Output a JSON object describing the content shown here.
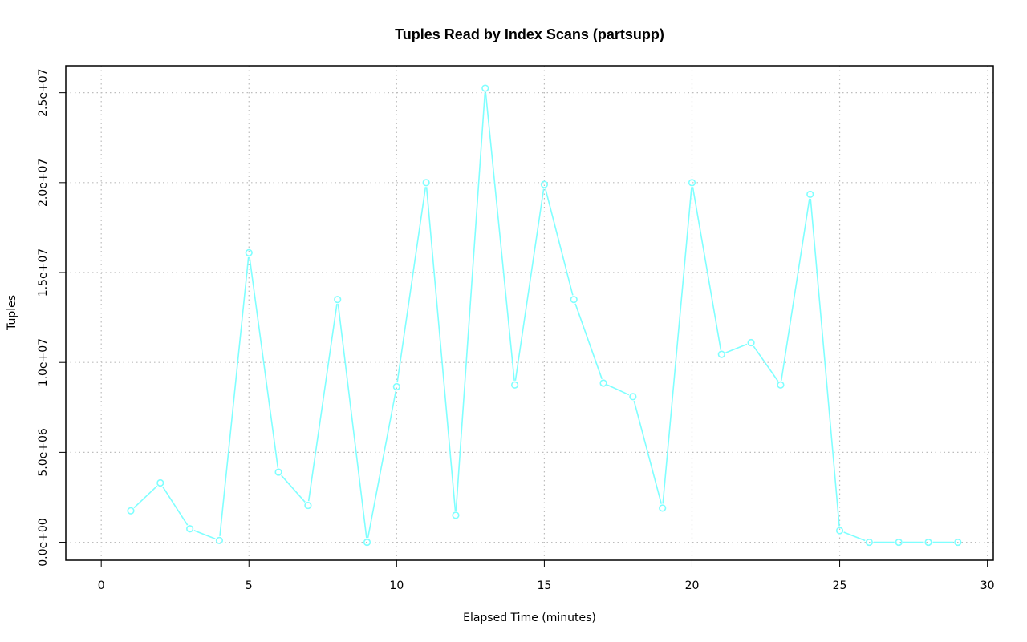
{
  "chart_data": {
    "type": "line",
    "title": "Tuples Read by Index Scans (partsupp)",
    "xlabel": "Elapsed Time (minutes)",
    "ylabel": "Tuples",
    "xlim": [
      -1.2,
      30.2
    ],
    "ylim": [
      -1000000,
      26500000
    ],
    "x_ticks": [
      0,
      5,
      10,
      15,
      20,
      25,
      30
    ],
    "x_tick_labels": [
      "0",
      "5",
      "10",
      "15",
      "20",
      "25",
      "30"
    ],
    "y_ticks": [
      0,
      5000000,
      10000000,
      15000000,
      20000000,
      25000000
    ],
    "y_tick_labels": [
      "0.0e+00",
      "5.0e+06",
      "1.0e+07",
      "1.5e+07",
      "2.0e+07",
      "2.5e+07"
    ],
    "grid": true,
    "series": [
      {
        "color": "#7fffff",
        "x": [
          1,
          2,
          3,
          4,
          5,
          6,
          7,
          8,
          9,
          10,
          11,
          12,
          13,
          14,
          15,
          16,
          17,
          18,
          19,
          20,
          21,
          22,
          23,
          24,
          25,
          26,
          27,
          28,
          29
        ],
        "values": [
          1750000,
          3300000,
          750000,
          100000,
          16100000,
          3900000,
          2050000,
          13500000,
          0,
          8650000,
          20000000,
          1500000,
          25250000,
          8750000,
          19900000,
          13500000,
          8850000,
          8100000,
          1900000,
          20000000,
          10450000,
          11100000,
          8750000,
          19350000,
          650000,
          0,
          0,
          0,
          0
        ]
      }
    ]
  }
}
